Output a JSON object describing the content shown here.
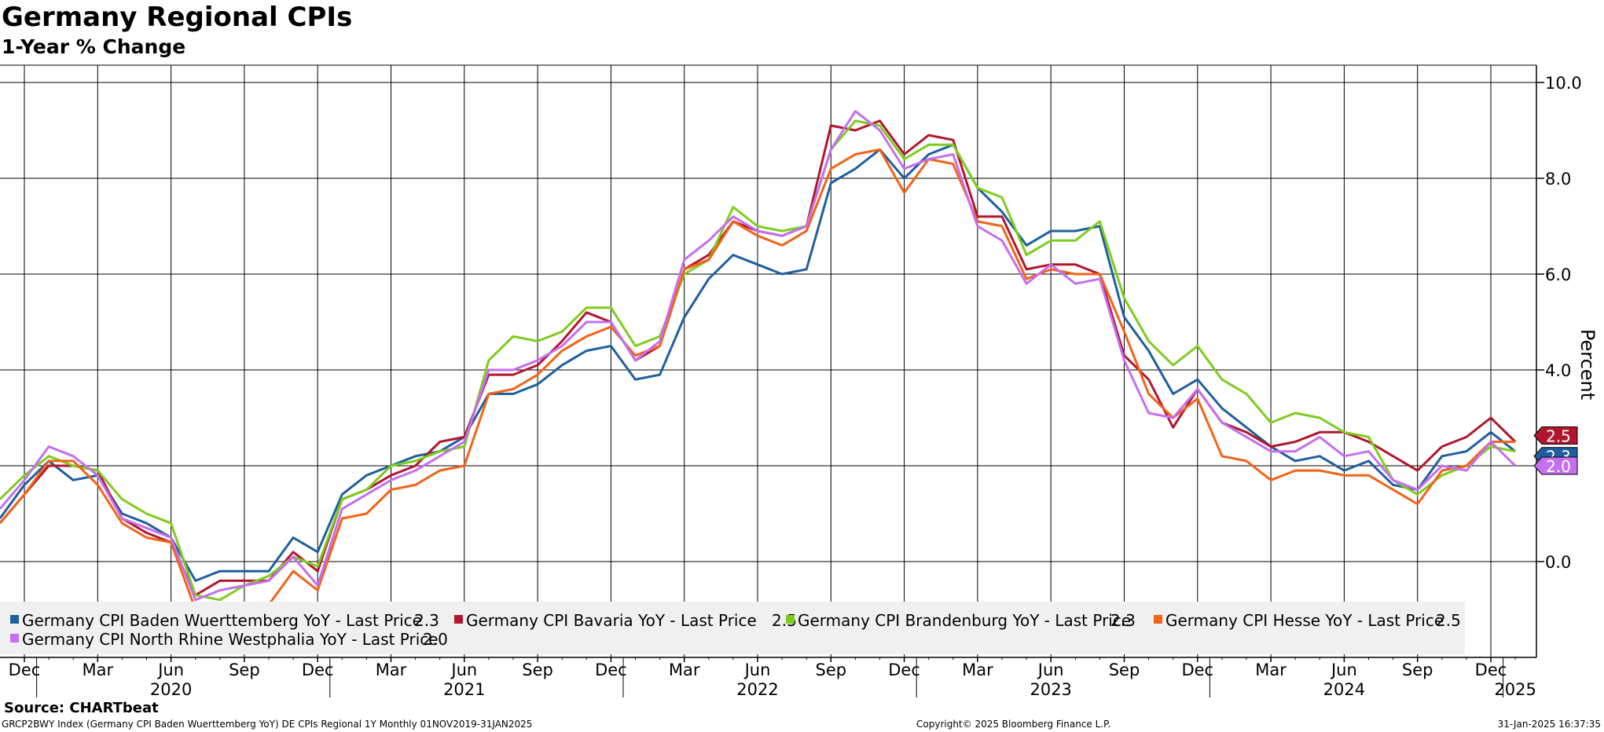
{
  "chart_data": {
    "type": "line",
    "title": "Germany Regional CPIs",
    "subtitle": "1-Year % Change",
    "ylabel": "Percent",
    "ylim": [
      -2.0,
      10.5
    ],
    "yticks": [
      "10.0",
      "8.0",
      "6.0",
      "4.0",
      "2.0",
      "0.0"
    ],
    "grid": true,
    "legend_position": "bottom-left",
    "month_labels": [
      {
        "date": "2019-12",
        "label": "Dec"
      },
      {
        "date": "2020-03",
        "label": "Mar"
      },
      {
        "date": "2020-06",
        "label": "Jun"
      },
      {
        "date": "2020-09",
        "label": "Sep"
      },
      {
        "date": "2020-12",
        "label": "Dec"
      },
      {
        "date": "2021-03",
        "label": "Mar"
      },
      {
        "date": "2021-06",
        "label": "Jun"
      },
      {
        "date": "2021-09",
        "label": "Sep"
      },
      {
        "date": "2021-12",
        "label": "Dec"
      },
      {
        "date": "2022-03",
        "label": "Mar"
      },
      {
        "date": "2022-06",
        "label": "Jun"
      },
      {
        "date": "2022-09",
        "label": "Sep"
      },
      {
        "date": "2022-12",
        "label": "Dec"
      },
      {
        "date": "2023-03",
        "label": "Mar"
      },
      {
        "date": "2023-06",
        "label": "Jun"
      },
      {
        "date": "2023-09",
        "label": "Sep"
      },
      {
        "date": "2023-12",
        "label": "Dec"
      },
      {
        "date": "2024-03",
        "label": "Mar"
      },
      {
        "date": "2024-06",
        "label": "Jun"
      },
      {
        "date": "2024-09",
        "label": "Sep"
      },
      {
        "date": "2024-12",
        "label": "Dec"
      }
    ],
    "year_labels": [
      {
        "date": "2020-06",
        "label": "2020"
      },
      {
        "date": "2021-06",
        "label": "2021"
      },
      {
        "date": "2022-06",
        "label": "2022"
      },
      {
        "date": "2023-06",
        "label": "2023"
      },
      {
        "date": "2024-06",
        "label": "2024"
      },
      {
        "date": "2025-01",
        "label": "2025"
      }
    ],
    "x": [
      "2019-11",
      "2019-12",
      "2020-01",
      "2020-02",
      "2020-03",
      "2020-04",
      "2020-05",
      "2020-06",
      "2020-07",
      "2020-08",
      "2020-09",
      "2020-10",
      "2020-11",
      "2020-12",
      "2021-01",
      "2021-02",
      "2021-03",
      "2021-04",
      "2021-05",
      "2021-06",
      "2021-07",
      "2021-08",
      "2021-09",
      "2021-10",
      "2021-11",
      "2021-12",
      "2022-01",
      "2022-02",
      "2022-03",
      "2022-04",
      "2022-05",
      "2022-06",
      "2022-07",
      "2022-08",
      "2022-09",
      "2022-10",
      "2022-11",
      "2022-12",
      "2023-01",
      "2023-02",
      "2023-03",
      "2023-04",
      "2023-05",
      "2023-06",
      "2023-07",
      "2023-08",
      "2023-09",
      "2023-10",
      "2023-11",
      "2023-12",
      "2024-01",
      "2024-02",
      "2024-03",
      "2024-04",
      "2024-05",
      "2024-06",
      "2024-07",
      "2024-08",
      "2024-09",
      "2024-10",
      "2024-11",
      "2024-12",
      "2025-01"
    ],
    "series": [
      {
        "name": "Germany CPI Baden Wuerttemberg YoY - Last Price",
        "color": "#1f5f9e",
        "last_label": "2.3",
        "values": [
          0.9,
          1.6,
          2.1,
          1.7,
          1.8,
          1.0,
          0.8,
          0.5,
          -0.4,
          -0.2,
          -0.2,
          -0.2,
          0.5,
          0.2,
          1.4,
          1.8,
          2.0,
          2.2,
          2.3,
          2.6,
          3.5,
          3.5,
          3.7,
          4.1,
          4.4,
          4.5,
          3.8,
          3.9,
          5.1,
          5.9,
          6.4,
          6.2,
          6.0,
          6.1,
          7.9,
          8.2,
          8.6,
          8.0,
          8.5,
          8.7,
          7.8,
          7.3,
          6.6,
          6.9,
          6.9,
          7.0,
          5.1,
          4.4,
          3.5,
          3.8,
          3.2,
          2.8,
          2.4,
          2.1,
          2.2,
          1.9,
          2.1,
          1.6,
          1.5,
          2.2,
          2.3,
          2.7,
          2.3
        ]
      },
      {
        "name": "Germany CPI Bavaria YoY - Last Price",
        "color": "#b0172f",
        "last_label": "2.5",
        "values": [
          0.8,
          1.4,
          2.0,
          2.0,
          1.9,
          0.9,
          0.6,
          0.4,
          -0.7,
          -0.4,
          -0.4,
          -0.4,
          0.2,
          -0.2,
          1.3,
          1.5,
          1.8,
          2.0,
          2.5,
          2.6,
          3.9,
          3.9,
          4.1,
          4.6,
          5.2,
          5.0,
          4.2,
          4.5,
          6.1,
          6.4,
          7.1,
          6.9,
          6.8,
          7.0,
          9.1,
          9.0,
          9.2,
          8.5,
          8.9,
          8.8,
          7.2,
          7.2,
          6.1,
          6.2,
          6.2,
          6.0,
          4.3,
          3.8,
          2.8,
          3.6,
          2.9,
          2.7,
          2.4,
          2.5,
          2.7,
          2.7,
          2.5,
          2.2,
          1.9,
          2.4,
          2.6,
          3.0,
          2.5
        ]
      },
      {
        "name": "Germany CPI Brandenburg YoY - Last Price",
        "color": "#7fcc1e",
        "last_label": "2.3",
        "values": [
          1.3,
          1.8,
          2.2,
          2.0,
          1.9,
          1.3,
          1.0,
          0.8,
          -0.7,
          -0.8,
          -0.5,
          -0.3,
          0.1,
          -0.1,
          1.3,
          1.5,
          2.0,
          2.1,
          2.3,
          2.4,
          4.2,
          4.7,
          4.6,
          4.8,
          5.3,
          5.3,
          4.5,
          4.7,
          6.0,
          6.3,
          7.4,
          7.0,
          6.9,
          7.0,
          8.6,
          9.2,
          9.1,
          8.4,
          8.7,
          8.7,
          7.8,
          7.6,
          6.4,
          6.7,
          6.7,
          7.1,
          5.5,
          4.6,
          4.1,
          4.5,
          3.8,
          3.5,
          2.9,
          3.1,
          3.0,
          2.7,
          2.6,
          1.7,
          1.4,
          1.8,
          2.0,
          2.4,
          2.3
        ]
      },
      {
        "name": "Germany CPI Hesse YoY - Last Price",
        "color": "#f26318",
        "last_label": "2.5",
        "values": [
          0.8,
          1.4,
          2.1,
          2.1,
          1.6,
          0.8,
          0.5,
          0.4,
          -1.0,
          -1.0,
          -1.0,
          -0.9,
          -0.2,
          -0.6,
          0.9,
          1.0,
          1.5,
          1.6,
          1.9,
          2.0,
          3.5,
          3.6,
          3.9,
          4.4,
          4.7,
          4.9,
          4.3,
          4.5,
          6.1,
          6.3,
          7.1,
          6.8,
          6.6,
          6.9,
          8.2,
          8.5,
          8.6,
          7.7,
          8.4,
          8.3,
          7.1,
          7.0,
          5.9,
          6.1,
          6.0,
          6.0,
          4.8,
          3.5,
          3.0,
          3.4,
          2.2,
          2.1,
          1.7,
          1.9,
          1.9,
          1.8,
          1.8,
          1.5,
          1.2,
          1.9,
          2.0,
          2.5,
          2.5
        ]
      },
      {
        "name": "Germany CPI North Rhine Westphalia YoY - Last Price",
        "color": "#c56ff0",
        "last_label": "2.0",
        "values": [
          1.1,
          1.7,
          2.4,
          2.2,
          1.8,
          0.9,
          0.7,
          0.5,
          -0.8,
          -0.6,
          -0.5,
          -0.4,
          0.1,
          -0.5,
          1.1,
          1.4,
          1.7,
          1.9,
          2.2,
          2.5,
          4.0,
          4.0,
          4.2,
          4.5,
          5.0,
          5.0,
          4.2,
          4.6,
          6.3,
          6.7,
          7.2,
          6.9,
          6.8,
          7.0,
          8.6,
          9.4,
          9.0,
          8.2,
          8.4,
          8.5,
          7.0,
          6.7,
          5.8,
          6.2,
          5.8,
          5.9,
          4.2,
          3.1,
          3.0,
          3.6,
          2.9,
          2.6,
          2.3,
          2.3,
          2.6,
          2.2,
          2.3,
          1.7,
          1.5,
          2.0,
          1.9,
          2.5,
          2.0
        ]
      }
    ],
    "legend_values": [
      "2.3",
      "2.5",
      "2.3",
      "2.5",
      "2.0"
    ]
  },
  "source": "Source: CHARTbeat",
  "footer": {
    "left": "GRCP2BWY Index (Germany CPI Baden Wuerttemberg YoY) DE CPIs Regional 1Y  Monthly 01NOV2019-31JAN2025",
    "center": "Copyright© 2025 Bloomberg Finance L.P.",
    "right": "31-Jan-2025 16:37:35"
  }
}
